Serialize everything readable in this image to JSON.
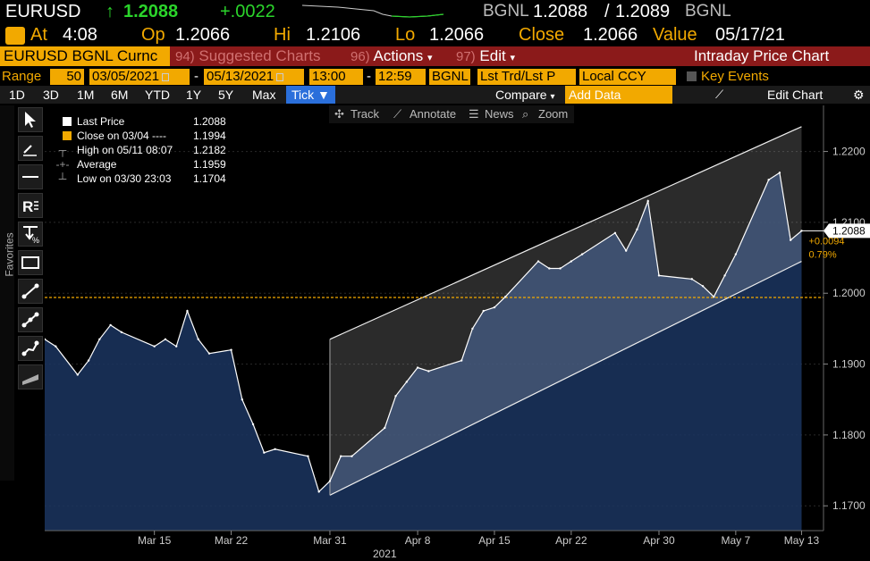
{
  "header": {
    "ticker": "EURUSD",
    "arrow": "↑",
    "price": "1.2088",
    "change": "+.0022",
    "source1": "BGNL",
    "bid": "1.2088",
    "slash": "/",
    "ask": "1.2089",
    "source2": "BGNL",
    "up_color": "#2bd42b"
  },
  "session": {
    "at_label": "At",
    "at_value": "4:08",
    "op_label": "Op",
    "op_value": "1.2066",
    "hi_label": "Hi",
    "hi_value": "1.2106",
    "lo_label": "Lo",
    "lo_value": "1.2066",
    "close_label": "Close",
    "close_value": "1.2066",
    "value_label": "Value",
    "value_date": "05/17/21"
  },
  "function_bar": {
    "security": "EURUSD BGNL Curnc",
    "suggested_num": "94)",
    "suggested_label": "Suggested Charts",
    "actions_num": "96)",
    "actions_label": "Actions",
    "edit_num": "97)",
    "edit_label": "Edit",
    "title": "Intraday Price Chart"
  },
  "range_bar": {
    "range_label": "Range",
    "bars": "50",
    "start_date": "03/05/2021",
    "dash": "-",
    "end_date": "05/13/2021",
    "start_time": "13:00",
    "dash2": "-",
    "end_time": "12:59",
    "source": "BGNL",
    "field": "Lst Trd/Lst P",
    "currency": "Local CCY",
    "key_events": "Key Events"
  },
  "period_bar": {
    "periods": [
      "1D",
      "3D",
      "1M",
      "6M",
      "YTD",
      "1Y",
      "5Y",
      "Max"
    ],
    "tick": "Tick ▼",
    "compare": "Compare",
    "add_data_placeholder": "Add Data",
    "edit_chart": "Edit Chart"
  },
  "sidebar": {
    "favorites": "Favorites",
    "tools": [
      "pointer-icon",
      "line-draw-icon",
      "horizontal-line-icon",
      "text-icon",
      "fibonacci-icon",
      "rectangle-icon",
      "trendline-icon",
      "channel-icon",
      "multipoint-icon",
      "ruler-icon"
    ]
  },
  "chart_tools": {
    "track": "Track",
    "annotate": "Annotate",
    "news": "News",
    "zoom": "Zoom"
  },
  "legend": {
    "rows": [
      {
        "label": "Last Price",
        "value": "1.2088",
        "color": "#ffffff"
      },
      {
        "label": "Close on 03/04 ----",
        "value": "1.1994",
        "color": "#f2a900"
      },
      {
        "label": "High on 05/11 08:07",
        "value": "1.2182",
        "color": ""
      },
      {
        "label": "Average",
        "value": "1.1959",
        "color": ""
      },
      {
        "label": "Low on 03/30 23:03",
        "value": "1.1704",
        "color": ""
      }
    ]
  },
  "annotations": {
    "last_price_tag": "1.2088",
    "change_abs": "+0.0094",
    "change_pct": "0.79%"
  },
  "chart_data": {
    "type": "line",
    "title": "Intraday Price Chart",
    "xlabel": "2021",
    "ylabel": "",
    "ylim": [
      1.1665,
      1.2265
    ],
    "yticks": [
      1.17,
      1.18,
      1.19,
      1.2,
      1.21,
      1.22
    ],
    "ytick_labels": [
      "1.1700",
      "1.1800",
      "1.1900",
      "1.2000",
      "1.2100",
      "1.2200"
    ],
    "xtick_labels": [
      "Mar 15",
      "Mar 22",
      "Mar 31",
      "Apr 8",
      "Apr 15",
      "Apr 22",
      "Apr 30",
      "May 7",
      "May 13"
    ],
    "xtick_dates": [
      "2021-03-15",
      "2021-03-22",
      "2021-03-31",
      "2021-04-08",
      "2021-04-15",
      "2021-04-22",
      "2021-04-30",
      "2021-05-07",
      "2021-05-13"
    ],
    "reference_close": 1.1994,
    "last_price": 1.2088,
    "series": [
      {
        "name": "Last Price",
        "x": [
          "2021-03-05",
          "2021-03-06",
          "2021-03-08",
          "2021-03-09",
          "2021-03-10",
          "2021-03-11",
          "2021-03-12",
          "2021-03-15",
          "2021-03-16",
          "2021-03-17",
          "2021-03-18",
          "2021-03-19",
          "2021-03-20",
          "2021-03-22",
          "2021-03-23",
          "2021-03-24",
          "2021-03-25",
          "2021-03-26",
          "2021-03-29",
          "2021-03-30",
          "2021-03-31",
          "2021-04-01",
          "2021-04-02",
          "2021-04-05",
          "2021-04-06",
          "2021-04-07",
          "2021-04-08",
          "2021-04-09",
          "2021-04-12",
          "2021-04-13",
          "2021-04-14",
          "2021-04-15",
          "2021-04-16",
          "2021-04-19",
          "2021-04-20",
          "2021-04-21",
          "2021-04-22",
          "2021-04-23",
          "2021-04-26",
          "2021-04-27",
          "2021-04-28",
          "2021-04-29",
          "2021-04-30",
          "2021-05-03",
          "2021-05-04",
          "2021-05-05",
          "2021-05-06",
          "2021-05-07",
          "2021-05-10",
          "2021-05-11",
          "2021-05-12",
          "2021-05-13"
        ],
        "values": [
          1.1935,
          1.1925,
          1.1885,
          1.1905,
          1.1935,
          1.1955,
          1.1945,
          1.1925,
          1.1935,
          1.1925,
          1.1975,
          1.1935,
          1.1915,
          1.192,
          1.185,
          1.1815,
          1.1775,
          1.178,
          1.177,
          1.172,
          1.1735,
          1.177,
          1.177,
          1.181,
          1.1855,
          1.1875,
          1.1895,
          1.189,
          1.1905,
          1.195,
          1.1975,
          1.198,
          1.1995,
          1.2045,
          1.2035,
          1.2035,
          1.2045,
          1.2055,
          1.2085,
          1.206,
          1.209,
          1.213,
          1.2025,
          1.202,
          1.201,
          1.1995,
          1.2025,
          1.2055,
          1.216,
          1.217,
          1.2075,
          1.2088
        ]
      }
    ],
    "channel": {
      "upper": [
        [
          "2021-03-31",
          1.1935
        ],
        [
          "2021-05-13",
          1.2235
        ]
      ],
      "lower": [
        [
          "2021-03-31",
          1.1715
        ],
        [
          "2021-05-13",
          1.2045
        ]
      ]
    }
  }
}
